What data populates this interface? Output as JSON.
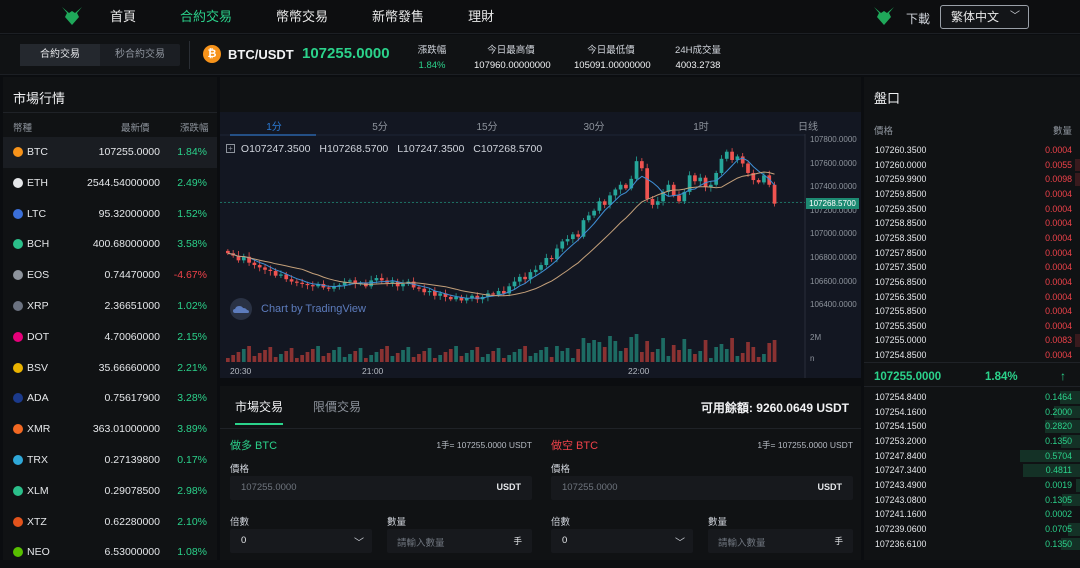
{
  "nav": {
    "links": [
      "首頁",
      "合約交易",
      "幣幣交易",
      "新幣發售",
      "理財"
    ],
    "active_index": 1,
    "download": "下載",
    "language": "繁体中文"
  },
  "ticker": {
    "mode_tabs": [
      "合約交易",
      "秒合約交易"
    ],
    "pair": "BTC/USDT",
    "price": "107255.0000",
    "stats": [
      {
        "label": "漲跌幅",
        "value": "1.84%"
      },
      {
        "label": "今日最高價",
        "value": "107960.00000000"
      },
      {
        "label": "今日最低價",
        "value": "105091.00000000"
      },
      {
        "label": "24H成交量",
        "value": "4003.2738"
      }
    ]
  },
  "market": {
    "title": "市場行情",
    "headers": [
      "幣種",
      "最新價",
      "漲跌幅"
    ],
    "rows": [
      {
        "symbol": "BTC",
        "price": "107255.0000",
        "change": "1.84%",
        "color": "#f7931a"
      },
      {
        "symbol": "ETH",
        "price": "2544.54000000",
        "change": "2.49%",
        "color": "#e5e7ea"
      },
      {
        "symbol": "LTC",
        "price": "95.32000000",
        "change": "1.52%",
        "color": "#3b6fd8"
      },
      {
        "symbol": "BCH",
        "price": "400.68000000",
        "change": "3.58%",
        "color": "#2bbf8a"
      },
      {
        "symbol": "EOS",
        "price": "0.74470000",
        "change": "-4.67%",
        "color": "#8d939c"
      },
      {
        "symbol": "XRP",
        "price": "2.36651000",
        "change": "1.02%",
        "color": "#6b7280"
      },
      {
        "symbol": "DOT",
        "price": "4.70060000",
        "change": "2.15%",
        "color": "#e6007a"
      },
      {
        "symbol": "BSV",
        "price": "35.66660000",
        "change": "2.21%",
        "color": "#eab300"
      },
      {
        "symbol": "ADA",
        "price": "0.75617900",
        "change": "3.28%",
        "color": "#1b3a8c"
      },
      {
        "symbol": "XMR",
        "price": "363.01000000",
        "change": "3.89%",
        "color": "#f26822"
      },
      {
        "symbol": "TRX",
        "price": "0.27139800",
        "change": "0.17%",
        "color": "#2fa8d8"
      },
      {
        "symbol": "XLM",
        "price": "0.29078500",
        "change": "2.98%",
        "color": "#2bbf8a"
      },
      {
        "symbol": "XTZ",
        "price": "0.62280000",
        "change": "2.10%",
        "color": "#e2531c"
      },
      {
        "symbol": "NEO",
        "price": "6.53000000",
        "change": "1.08%",
        "color": "#58bf00"
      }
    ]
  },
  "chart": {
    "intervals": [
      "1分",
      "5分",
      "15分",
      "30分",
      "1时",
      "日线"
    ],
    "ohlc": {
      "o": "O",
      "o_val": "107247.3500",
      "h": "H",
      "h_val": "107268.5700",
      "l": "L",
      "l_val": "107247.3500",
      "c": "C",
      "c_val": "107268.5700"
    },
    "watermark": "Chart by TradingView",
    "current_tag": "107268.5700",
    "y_ticks": [
      "107800.0000",
      "107600.0000",
      "107400.0000",
      "107200.0000",
      "107000.0000",
      "106800.0000",
      "106600.0000",
      "106400.0000"
    ],
    "vol_ticks": [
      "2M",
      "n"
    ],
    "x_ticks": [
      "20:30",
      "21:00",
      "22:00"
    ]
  },
  "chart_data": {
    "type": "candlestick",
    "ylim": [
      106300,
      107850
    ],
    "closes": [
      106840,
      106820,
      106780,
      106810,
      106760,
      106740,
      106720,
      106700,
      106690,
      106650,
      106660,
      106620,
      106600,
      106590,
      106580,
      106570,
      106560,
      106580,
      106550,
      106540,
      106560,
      106570,
      106600,
      106610,
      106580,
      106590,
      106560,
      106610,
      106630,
      106610,
      106590,
      106600,
      106560,
      106580,
      106600,
      106550,
      106540,
      106510,
      106520,
      106480,
      106500,
      106470,
      106450,
      106470,
      106440,
      106460,
      106480,
      106450,
      106470,
      106500,
      106490,
      106520,
      106500,
      106560,
      106600,
      106640,
      106620,
      106680,
      106700,
      106740,
      106800,
      106790,
      106880,
      106940,
      106960,
      107000,
      106980,
      107120,
      107160,
      107200,
      107280,
      107250,
      107330,
      107380,
      107420,
      107390,
      107470,
      107620,
      107560,
      107300,
      107250,
      107280,
      107360,
      107420,
      107330,
      107280,
      107360,
      107500,
      107450,
      107480,
      107400,
      107420,
      107520,
      107640,
      107700,
      107630,
      107660,
      107600,
      107520,
      107460,
      107440,
      107500,
      107420,
      107260
    ]
  },
  "trade": {
    "tabs": [
      "市場交易",
      "限價交易"
    ],
    "avail_label": "可用餘額:",
    "avail_value": "9260.0649 USDT",
    "buy": {
      "title": "做多 BTC",
      "lot": "1手= 107255.0000 USDT",
      "price_label": "價格",
      "price_placeholder": "107255.0000",
      "unit": "USDT",
      "lev_label": "倍數",
      "lev_value": "0",
      "qty_label": "數量",
      "qty_placeholder": "請輸入數量",
      "qty_unit": "手",
      "color": "#2bd28b"
    },
    "sell": {
      "title": "做空 BTC",
      "lot": "1手= 107255.0000 USDT",
      "price_label": "價格",
      "price_placeholder": "107255.0000",
      "unit": "USDT",
      "lev_label": "倍數",
      "lev_value": "0",
      "qty_label": "數量",
      "qty_placeholder": "請輸入數量",
      "qty_unit": "手",
      "color": "#f0424a"
    }
  },
  "book": {
    "title": "盤口",
    "headers": [
      "價格",
      "數量"
    ],
    "asks": [
      [
        "107260.3500",
        "0.0004"
      ],
      [
        "107260.0000",
        "0.0055"
      ],
      [
        "107259.9900",
        "0.0098"
      ],
      [
        "107259.8500",
        "0.0004"
      ],
      [
        "107259.3500",
        "0.0004"
      ],
      [
        "107258.8500",
        "0.0004"
      ],
      [
        "107258.3500",
        "0.0004"
      ],
      [
        "107257.8500",
        "0.0004"
      ],
      [
        "107257.3500",
        "0.0004"
      ],
      [
        "107256.8500",
        "0.0004"
      ],
      [
        "107256.3500",
        "0.0004"
      ],
      [
        "107255.8500",
        "0.0004"
      ],
      [
        "107255.3500",
        "0.0004"
      ],
      [
        "107255.0000",
        "0.0083"
      ],
      [
        "107254.8500",
        "0.0004"
      ]
    ],
    "mid_price": "107255.0000",
    "mid_change": "1.84%",
    "mid_arrow": "↑",
    "bids": [
      [
        "107254.8400",
        "0.1464"
      ],
      [
        "107254.1600",
        "0.2000"
      ],
      [
        "107254.1500",
        "0.2820"
      ],
      [
        "107253.2000",
        "0.1350"
      ],
      [
        "107247.8400",
        "0.5704"
      ],
      [
        "107247.3400",
        "0.4811"
      ],
      [
        "107243.4900",
        "0.0019"
      ],
      [
        "107243.0800",
        "0.1305"
      ],
      [
        "107241.1600",
        "0.0002"
      ],
      [
        "107239.0600",
        "0.0705"
      ],
      [
        "107236.6100",
        "0.1350"
      ]
    ],
    "colors": {
      "ask": "#f0424a",
      "bid": "#2bd28b"
    }
  }
}
